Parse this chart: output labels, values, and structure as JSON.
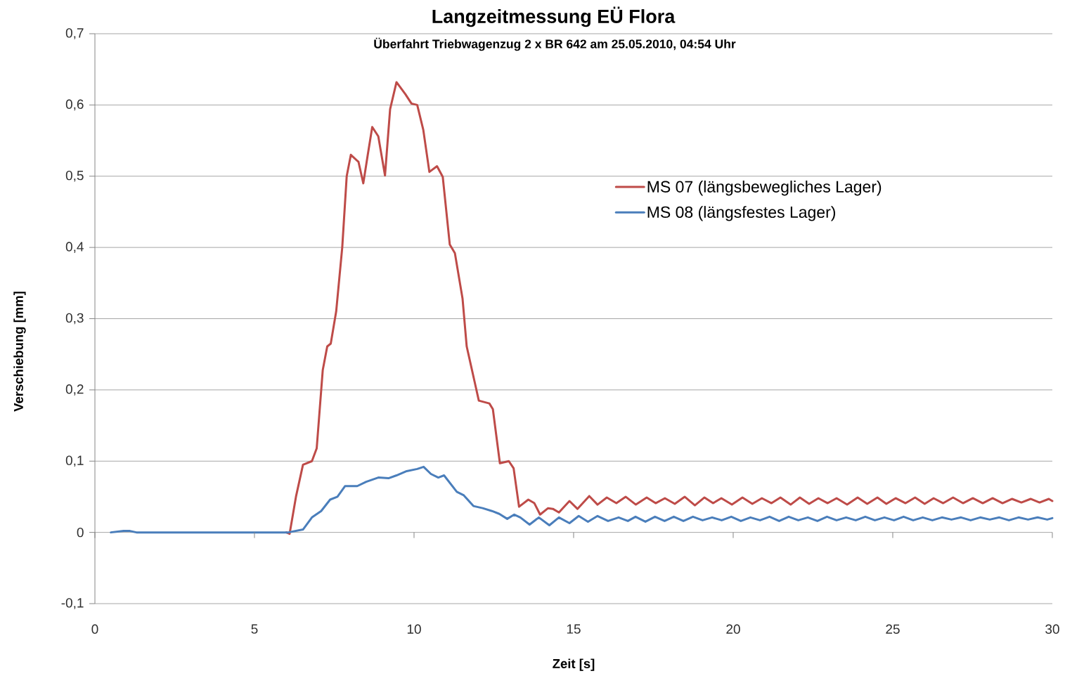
{
  "chart_data": {
    "type": "line",
    "title": "Langzeitmessung EÜ Flora",
    "subtitle": "Überfahrt Triebwagenzug 2 x BR 642 am 25.05.2010, 04:54 Uhr",
    "xlabel": "Zeit [s]",
    "ylabel": "Verschiebung [mm]",
    "xlim": [
      0,
      30
    ],
    "ylim": [
      -0.1,
      0.7
    ],
    "xticks": [
      0,
      5,
      10,
      15,
      20,
      25,
      30
    ],
    "yticks": [
      {
        "value": -0.1,
        "label": "-0,1"
      },
      0,
      {
        "value": 0.1,
        "label": "0,1"
      },
      {
        "value": 0.2,
        "label": "0,2"
      },
      {
        "value": 0.3,
        "label": "0,3"
      },
      {
        "value": 0.4,
        "label": "0,4"
      },
      {
        "value": 0.5,
        "label": "0,5"
      },
      {
        "value": 0.6,
        "label": "0,6"
      },
      {
        "value": 0.7,
        "label": "0,7"
      }
    ],
    "grid": "y",
    "legend": "top right",
    "line_style": "solid",
    "series": [
      {
        "name": "MS 07 (längsbewegliches Lager)",
        "color": "#be4b48",
        "x": [
          6.0,
          6.1,
          6.3,
          6.52,
          6.8,
          6.95,
          7.14,
          7.28,
          7.39,
          7.56,
          7.75,
          7.89,
          8.02,
          8.26,
          8.41,
          8.55,
          8.69,
          8.88,
          9.09,
          9.25,
          9.45,
          9.73,
          9.92,
          10.1,
          10.29,
          10.48,
          10.72,
          10.9,
          11.12,
          11.28,
          11.52,
          11.65,
          11.9,
          12.03,
          12.36,
          12.47,
          12.69,
          12.97,
          13.12,
          13.29,
          13.58,
          13.77,
          13.95,
          14.2,
          14.35,
          14.54,
          14.87,
          15.12,
          15.49,
          15.75,
          16.04,
          16.34,
          16.63,
          16.95,
          17.29,
          17.57,
          17.86,
          18.17,
          18.48,
          18.8,
          19.1,
          19.37,
          19.63,
          19.96,
          20.29,
          20.6,
          20.9,
          21.2,
          21.48,
          21.8,
          22.09,
          22.38,
          22.67,
          22.96,
          23.24,
          23.57,
          23.9,
          24.2,
          24.52,
          24.8,
          25.09,
          25.4,
          25.7,
          26.0,
          26.28,
          26.58,
          26.89,
          27.2,
          27.51,
          27.82,
          28.13,
          28.44,
          28.74,
          29.03,
          29.32,
          29.6,
          29.89,
          30.0
        ],
        "values": [
          0,
          -0.002,
          0.05,
          0.095,
          0.1,
          0.118,
          0.228,
          0.261,
          0.265,
          0.31,
          0.4,
          0.5,
          0.53,
          0.52,
          0.49,
          0.53,
          0.569,
          0.556,
          0.501,
          0.594,
          0.632,
          0.615,
          0.602,
          0.6,
          0.565,
          0.506,
          0.514,
          0.499,
          0.404,
          0.392,
          0.328,
          0.261,
          0.211,
          0.185,
          0.181,
          0.173,
          0.097,
          0.1,
          0.09,
          0.036,
          0.046,
          0.041,
          0.025,
          0.034,
          0.033,
          0.028,
          0.044,
          0.033,
          0.051,
          0.039,
          0.049,
          0.041,
          0.05,
          0.039,
          0.049,
          0.041,
          0.048,
          0.04,
          0.05,
          0.038,
          0.049,
          0.041,
          0.048,
          0.039,
          0.049,
          0.04,
          0.048,
          0.041,
          0.049,
          0.039,
          0.049,
          0.04,
          0.048,
          0.041,
          0.048,
          0.039,
          0.049,
          0.04,
          0.049,
          0.04,
          0.048,
          0.041,
          0.049,
          0.04,
          0.048,
          0.041,
          0.049,
          0.041,
          0.048,
          0.041,
          0.048,
          0.041,
          0.047,
          0.042,
          0.047,
          0.042,
          0.047,
          0.044
        ]
      },
      {
        "name": "MS 08 (längsfestes Lager)",
        "color": "#4a7ebb",
        "x": [
          0.5,
          0.9,
          1.1,
          1.3,
          3,
          5,
          6.06,
          6.52,
          6.8,
          7.09,
          7.37,
          7.6,
          7.84,
          8.22,
          8.5,
          8.88,
          9.2,
          9.45,
          9.77,
          10.1,
          10.3,
          10.53,
          10.76,
          10.94,
          11.34,
          11.56,
          11.86,
          12.15,
          12.44,
          12.67,
          12.92,
          13.14,
          13.33,
          13.62,
          13.91,
          14.24,
          14.54,
          14.87,
          15.16,
          15.45,
          15.75,
          16.08,
          16.41,
          16.7,
          16.94,
          17.25,
          17.55,
          17.85,
          18.14,
          18.44,
          18.74,
          19.04,
          19.34,
          19.64,
          19.94,
          20.24,
          20.54,
          20.84,
          21.14,
          21.44,
          21.74,
          22.04,
          22.34,
          22.64,
          22.94,
          23.24,
          23.54,
          23.84,
          24.14,
          24.44,
          24.74,
          25.04,
          25.34,
          25.64,
          25.94,
          26.24,
          26.54,
          26.84,
          27.14,
          27.44,
          27.74,
          28.04,
          28.34,
          28.64,
          28.94,
          29.24,
          29.54,
          29.84,
          30.0
        ],
        "values": [
          0,
          0.002,
          0.002,
          0,
          0,
          0,
          0,
          0.004,
          0.021,
          0.03,
          0.046,
          0.05,
          0.065,
          0.065,
          0.071,
          0.077,
          0.076,
          0.08,
          0.086,
          0.089,
          0.092,
          0.082,
          0.077,
          0.08,
          0.057,
          0.052,
          0.037,
          0.034,
          0.03,
          0.026,
          0.019,
          0.025,
          0.021,
          0.011,
          0.021,
          0.01,
          0.021,
          0.013,
          0.023,
          0.015,
          0.023,
          0.016,
          0.021,
          0.016,
          0.022,
          0.015,
          0.022,
          0.016,
          0.022,
          0.016,
          0.022,
          0.017,
          0.021,
          0.017,
          0.022,
          0.016,
          0.021,
          0.017,
          0.022,
          0.016,
          0.022,
          0.017,
          0.021,
          0.016,
          0.022,
          0.017,
          0.021,
          0.017,
          0.022,
          0.017,
          0.021,
          0.017,
          0.022,
          0.017,
          0.021,
          0.017,
          0.021,
          0.018,
          0.021,
          0.017,
          0.021,
          0.018,
          0.021,
          0.017,
          0.021,
          0.018,
          0.021,
          0.018,
          0.02
        ]
      }
    ]
  }
}
